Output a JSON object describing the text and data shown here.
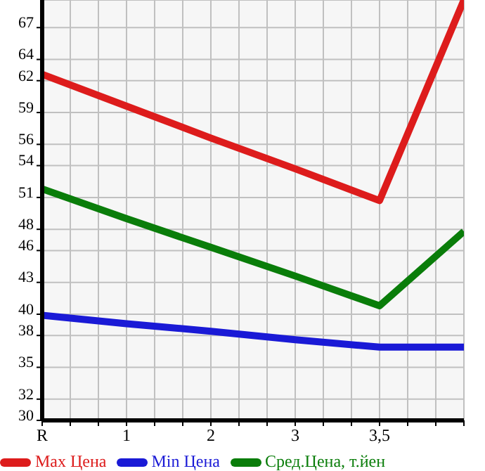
{
  "chart_data": {
    "type": "line",
    "categories": [
      "R",
      "1",
      "2",
      "3",
      "3,5",
      null
    ],
    "ylim": [
      30,
      69.6
    ],
    "yticks": [
      30,
      32,
      35,
      38,
      40,
      43,
      46,
      48,
      51,
      54,
      56,
      59,
      62,
      64,
      67
    ],
    "series": [
      {
        "name": "Max Цена",
        "color": "#dd1c1c",
        "values": [
          62.6,
          59.6,
          56.6,
          53.7,
          50.7,
          69.6
        ]
      },
      {
        "name": "Min Цена",
        "color": "#1a1ad6",
        "values": [
          39.9,
          39.1,
          38.4,
          37.6,
          36.9,
          36.9
        ]
      },
      {
        "name": "Сред.Цена, т.йен",
        "color": "#0a7d0a",
        "values": [
          51.8,
          49.0,
          46.3,
          43.6,
          40.8,
          47.8
        ]
      }
    ],
    "grid": true,
    "legend": "bottom",
    "marker": "none",
    "line_style": "solid"
  }
}
